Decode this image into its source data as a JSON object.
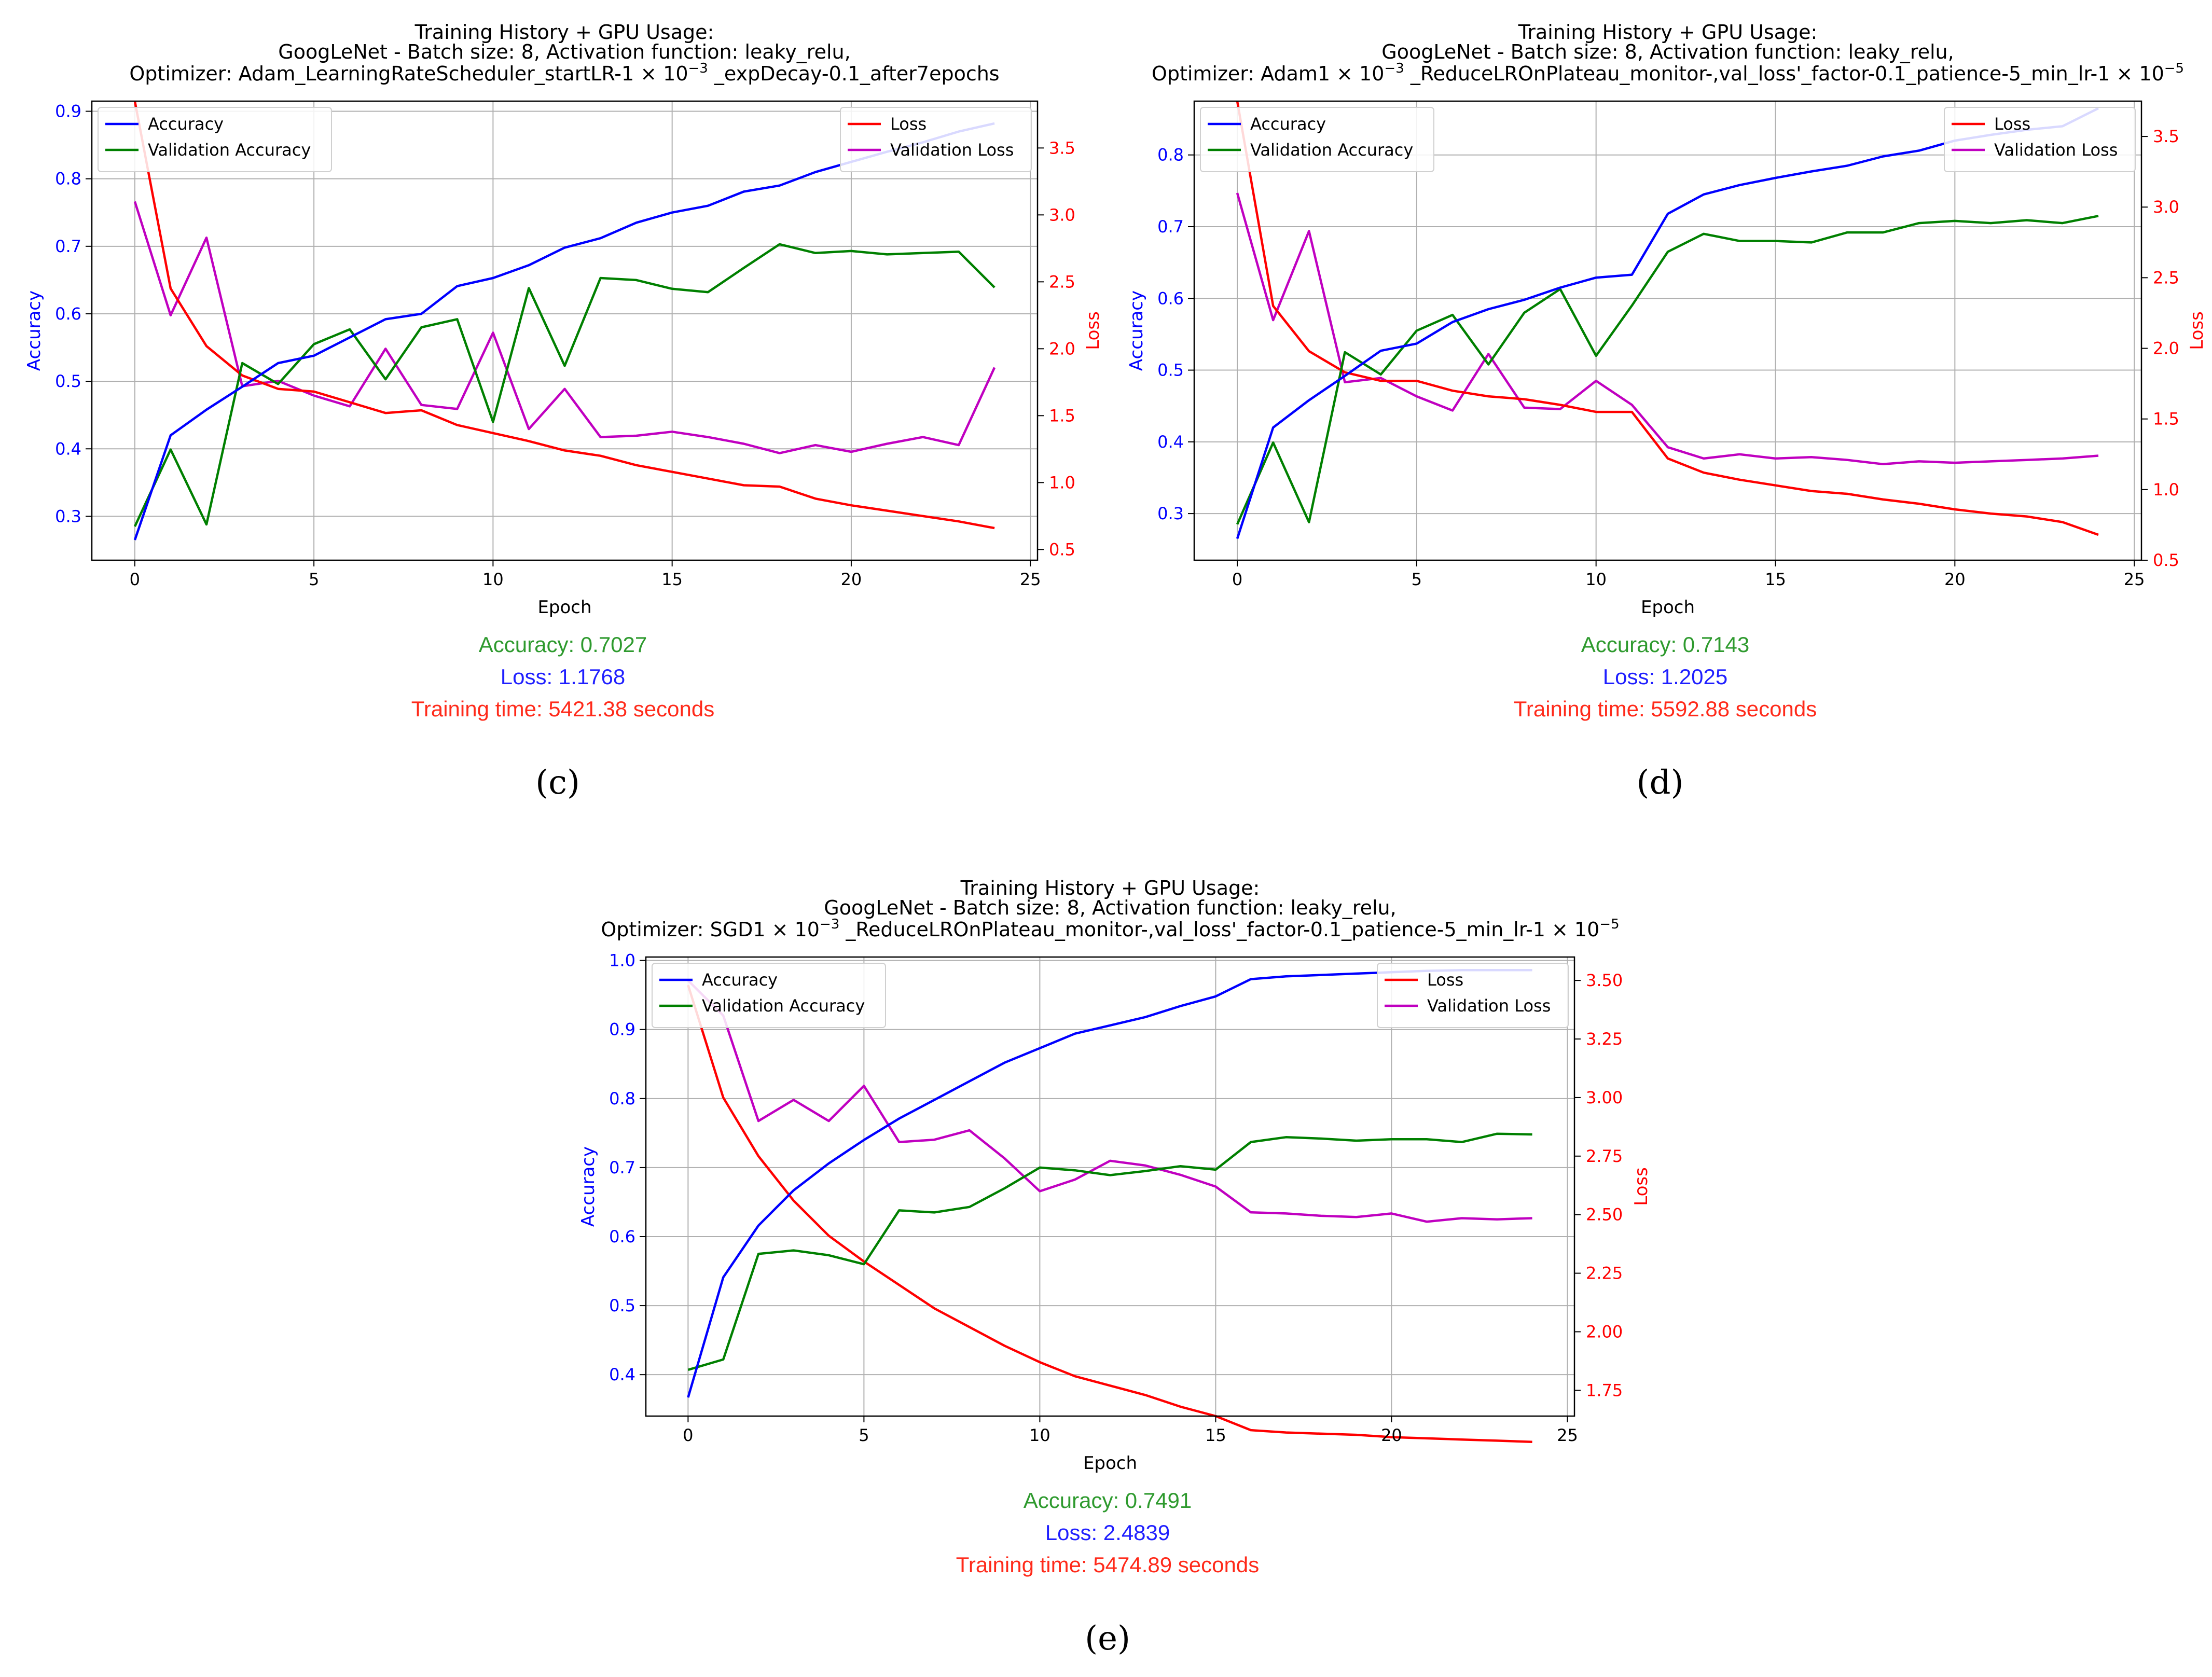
{
  "colors": {
    "accuracy": "#0000ff",
    "validation_accuracy": "#008000",
    "loss": "#ff0000",
    "validation_loss": "#c000c0",
    "metric_accuracy": "#2e9a2e",
    "metric_loss": "#1f1fff",
    "metric_time": "#ff2a1a"
  },
  "chart_data": [
    {
      "panel": "(c)",
      "type": "line",
      "title": [
        "Training History + GPU Usage:",
        "GoogLeNet - Batch size: 8, Activation function: leaky_relu,",
        "Optimizer: Adam_LearningRateScheduler_startLR-1 × 10^-3 _expDecay-0.1_after7epochs"
      ],
      "xlabel": "Epoch",
      "ylabel": "Accuracy",
      "y2label": "Loss",
      "xlim": [
        -1.2,
        25.2
      ],
      "ylim": [
        0.235,
        0.915
      ],
      "y2lim": [
        0.42,
        3.85
      ],
      "xticks": [
        0,
        5,
        10,
        15,
        20,
        25
      ],
      "yticks": [
        0.3,
        0.4,
        0.5,
        0.6,
        0.7,
        0.8,
        0.9
      ],
      "y2ticks": [
        0.5,
        1.0,
        1.5,
        2.0,
        2.5,
        3.0,
        3.5
      ],
      "ytick_decimals": 1,
      "y2tick_decimals": 1,
      "x": [
        0,
        1,
        2,
        3,
        4,
        5,
        6,
        7,
        8,
        9,
        10,
        11,
        12,
        13,
        14,
        15,
        16,
        17,
        18,
        19,
        20,
        21,
        22,
        23,
        24
      ],
      "series": [
        {
          "name": "Accuracy",
          "axis": "left",
          "values": [
            0.265,
            0.42,
            0.458,
            0.492,
            0.527,
            0.538,
            0.565,
            0.592,
            0.6,
            0.641,
            0.653,
            0.672,
            0.698,
            0.712,
            0.735,
            0.75,
            0.76,
            0.781,
            0.79,
            0.81,
            0.825,
            0.84,
            0.854,
            0.87,
            0.882
          ]
        },
        {
          "name": "Validation Accuracy",
          "axis": "left",
          "values": [
            0.285,
            0.399,
            0.288,
            0.527,
            0.496,
            0.555,
            0.577,
            0.503,
            0.58,
            0.592,
            0.44,
            0.638,
            0.523,
            0.653,
            0.65,
            0.637,
            0.632,
            0.668,
            0.703,
            0.69,
            0.693,
            0.688,
            0.69,
            0.692,
            0.639
          ]
        },
        {
          "name": "Loss",
          "axis": "right",
          "values": [
            3.85,
            2.45,
            2.02,
            1.8,
            1.7,
            1.68,
            1.6,
            1.52,
            1.54,
            1.43,
            1.37,
            1.31,
            1.24,
            1.2,
            1.13,
            1.08,
            1.03,
            0.98,
            0.97,
            0.88,
            0.83,
            0.79,
            0.75,
            0.71,
            0.66
          ]
        },
        {
          "name": "Validation Loss",
          "axis": "right",
          "values": [
            3.1,
            2.25,
            2.83,
            1.72,
            1.76,
            1.65,
            1.57,
            2.0,
            1.58,
            1.55,
            2.12,
            1.4,
            1.7,
            1.34,
            1.35,
            1.38,
            1.34,
            1.29,
            1.22,
            1.28,
            1.23,
            1.29,
            1.34,
            1.28,
            1.86
          ]
        }
      ],
      "legend_left": [
        "Accuracy",
        "Validation Accuracy"
      ],
      "legend_right": [
        "Loss",
        "Validation Loss"
      ],
      "metrics": {
        "accuracy": "Accuracy: 0.7027",
        "loss": "Loss: 1.1768",
        "time": "Training time: 5421.38 seconds"
      }
    },
    {
      "panel": "(d)",
      "type": "line",
      "title": [
        "Training History + GPU Usage:",
        "GoogLeNet - Batch size: 8, Activation function: leaky_relu,",
        "Optimizer: Adam1 × 10^-3 _ReduceLROnPlateau_monitor-,val_loss'_factor-0.1_patience-5_min_lr-1 × 10^-5"
      ],
      "xlabel": "Epoch",
      "ylabel": "Accuracy",
      "y2label": "Loss",
      "xlim": [
        -1.2,
        25.2
      ],
      "ylim": [
        0.235,
        0.875
      ],
      "y2lim": [
        0.5,
        3.75
      ],
      "xticks": [
        0,
        5,
        10,
        15,
        20,
        25
      ],
      "yticks": [
        0.3,
        0.4,
        0.5,
        0.6,
        0.7,
        0.8
      ],
      "y2ticks": [
        0.5,
        1.0,
        1.5,
        2.0,
        2.5,
        3.0,
        3.5
      ],
      "ytick_decimals": 1,
      "y2tick_decimals": 1,
      "x": [
        0,
        1,
        2,
        3,
        4,
        5,
        6,
        7,
        8,
        9,
        10,
        11,
        12,
        13,
        14,
        15,
        16,
        17,
        18,
        19,
        20,
        21,
        22,
        23,
        24
      ],
      "series": [
        {
          "name": "Accuracy",
          "axis": "left",
          "values": [
            0.265,
            0.42,
            0.458,
            0.492,
            0.527,
            0.537,
            0.567,
            0.585,
            0.598,
            0.615,
            0.629,
            0.633,
            0.718,
            0.745,
            0.758,
            0.768,
            0.777,
            0.785,
            0.798,
            0.806,
            0.82,
            0.828,
            0.835,
            0.84,
            0.865
          ]
        },
        {
          "name": "Validation Accuracy",
          "axis": "left",
          "values": [
            0.285,
            0.399,
            0.288,
            0.525,
            0.494,
            0.555,
            0.577,
            0.508,
            0.58,
            0.613,
            0.52,
            0.59,
            0.665,
            0.69,
            0.68,
            0.68,
            0.678,
            0.692,
            0.692,
            0.705,
            0.708,
            0.705,
            0.709,
            0.705,
            0.715
          ]
        },
        {
          "name": "Loss",
          "axis": "right",
          "values": [
            3.75,
            2.3,
            1.98,
            1.83,
            1.77,
            1.77,
            1.7,
            1.66,
            1.64,
            1.6,
            1.55,
            1.55,
            1.22,
            1.12,
            1.07,
            1.03,
            0.99,
            0.97,
            0.93,
            0.9,
            0.86,
            0.83,
            0.81,
            0.77,
            0.68
          ]
        },
        {
          "name": "Validation Loss",
          "axis": "right",
          "values": [
            3.1,
            2.2,
            2.83,
            1.76,
            1.79,
            1.66,
            1.56,
            1.96,
            1.58,
            1.57,
            1.77,
            1.6,
            1.3,
            1.22,
            1.25,
            1.22,
            1.23,
            1.21,
            1.18,
            1.2,
            1.19,
            1.2,
            1.21,
            1.22,
            1.24
          ]
        }
      ],
      "legend_left": [
        "Accuracy",
        "Validation Accuracy"
      ],
      "legend_right": [
        "Loss",
        "Validation Loss"
      ],
      "metrics": {
        "accuracy": "Accuracy: 0.7143",
        "loss": "Loss: 1.2025",
        "time": "Training time: 5592.88 seconds"
      }
    },
    {
      "panel": "(e)",
      "type": "line",
      "title": [
        "Training History + GPU Usage:",
        "GoogLeNet - Batch size: 8, Activation function: leaky_relu,",
        "Optimizer: SGD1 × 10^-3 _ReduceLROnPlateau_monitor-,val_loss'_factor-0.1_patience-5_min_lr-1 × 10^-5"
      ],
      "xlabel": "Epoch",
      "ylabel": "Accuracy",
      "y2label": "Loss",
      "xlim": [
        -1.2,
        25.2
      ],
      "ylim": [
        0.34,
        1.005
      ],
      "y2lim": [
        1.64,
        3.6
      ],
      "xticks": [
        0,
        5,
        10,
        15,
        20,
        25
      ],
      "yticks": [
        0.4,
        0.5,
        0.6,
        0.7,
        0.8,
        0.9,
        1.0
      ],
      "y2ticks": [
        1.75,
        2.0,
        2.25,
        2.5,
        2.75,
        3.0,
        3.25,
        3.5
      ],
      "ytick_decimals": 1,
      "y2tick_decimals": 2,
      "x": [
        0,
        1,
        2,
        3,
        4,
        5,
        6,
        7,
        8,
        9,
        10,
        11,
        12,
        13,
        14,
        15,
        16,
        17,
        18,
        19,
        20,
        21,
        22,
        23,
        24
      ],
      "series": [
        {
          "name": "Accuracy",
          "axis": "left",
          "values": [
            0.367,
            0.541,
            0.616,
            0.667,
            0.706,
            0.74,
            0.771,
            0.798,
            0.825,
            0.852,
            0.873,
            0.894,
            0.906,
            0.918,
            0.934,
            0.948,
            0.973,
            0.977,
            0.979,
            0.981,
            0.983,
            0.985,
            0.986,
            0.986,
            0.986
          ]
        },
        {
          "name": "Validation Accuracy",
          "axis": "left",
          "values": [
            0.407,
            0.422,
            0.575,
            0.58,
            0.573,
            0.56,
            0.638,
            0.635,
            0.643,
            0.67,
            0.7,
            0.696,
            0.689,
            0.695,
            0.702,
            0.697,
            0.737,
            0.744,
            0.742,
            0.739,
            0.741,
            0.741,
            0.737,
            0.749,
            0.748
          ]
        },
        {
          "name": "Loss",
          "axis": "right",
          "values": [
            3.48,
            3.0,
            2.75,
            2.56,
            2.41,
            2.3,
            2.2,
            2.1,
            2.02,
            1.94,
            1.87,
            1.81,
            1.77,
            1.73,
            1.68,
            1.64,
            1.58,
            1.57,
            1.565,
            1.56,
            1.55,
            1.545,
            1.54,
            1.535,
            1.53
          ]
        },
        {
          "name": "Validation Loss",
          "axis": "right",
          "values": [
            3.5,
            3.35,
            2.9,
            2.99,
            2.9,
            3.05,
            2.81,
            2.82,
            2.86,
            2.74,
            2.6,
            2.65,
            2.73,
            2.71,
            2.67,
            2.62,
            2.51,
            2.505,
            2.495,
            2.49,
            2.505,
            2.47,
            2.485,
            2.48,
            2.485
          ]
        }
      ],
      "legend_left": [
        "Accuracy",
        "Validation Accuracy"
      ],
      "legend_right": [
        "Loss",
        "Validation Loss"
      ],
      "metrics": {
        "accuracy": "Accuracy: 0.7491",
        "loss": "Loss: 2.4839",
        "time": "Training time: 5474.89 seconds"
      }
    }
  ]
}
